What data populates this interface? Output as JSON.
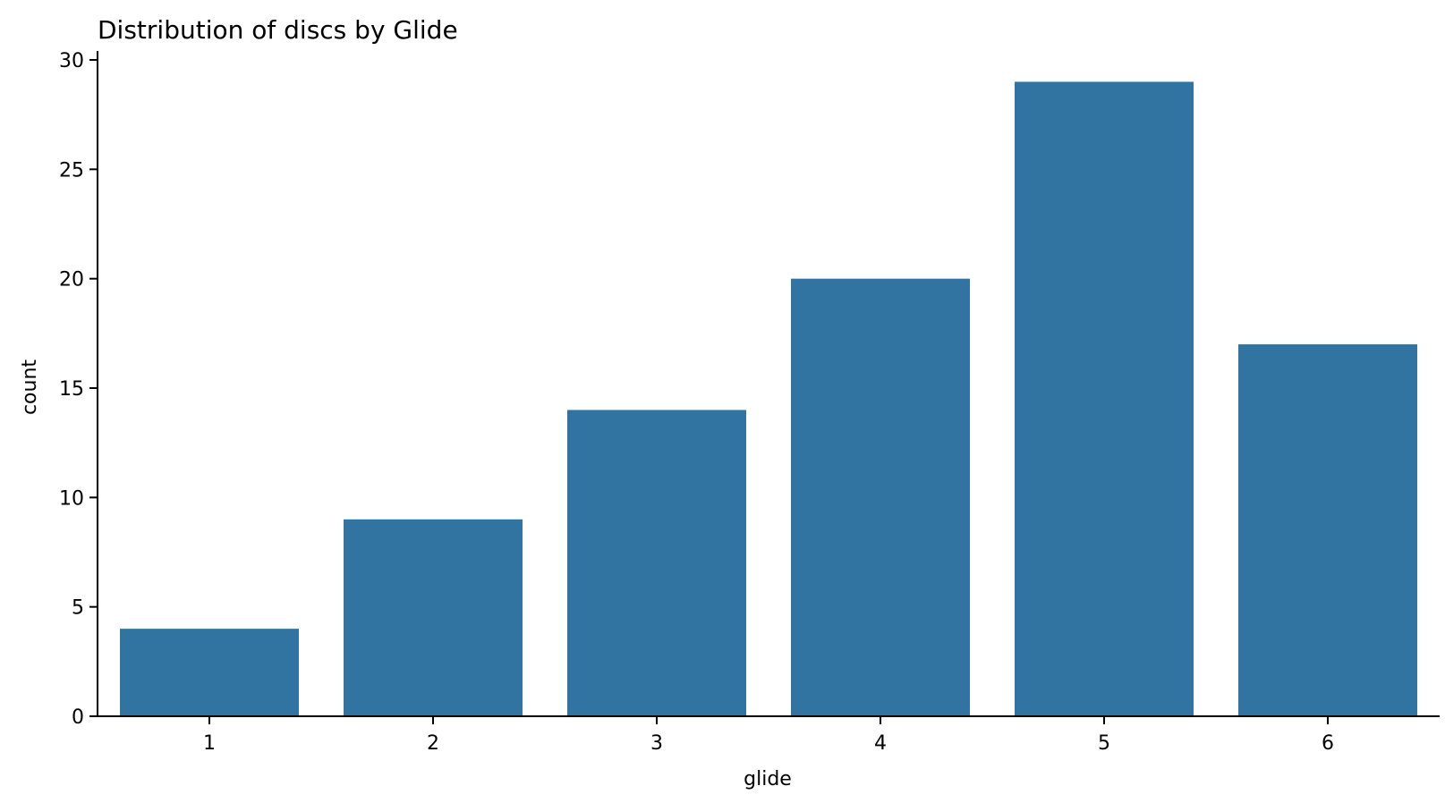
{
  "chart_data": {
    "type": "bar",
    "title": "Distribution of discs by Glide",
    "xlabel": "glide",
    "ylabel": "count",
    "categories": [
      "1",
      "2",
      "3",
      "4",
      "5",
      "6"
    ],
    "values": [
      4,
      9,
      14,
      20,
      29,
      17
    ],
    "ylim": [
      0,
      30
    ],
    "yticks": [
      "0",
      "5",
      "10",
      "15",
      "20",
      "25",
      "30"
    ],
    "grid": false,
    "bar_color": "#3274a1"
  }
}
